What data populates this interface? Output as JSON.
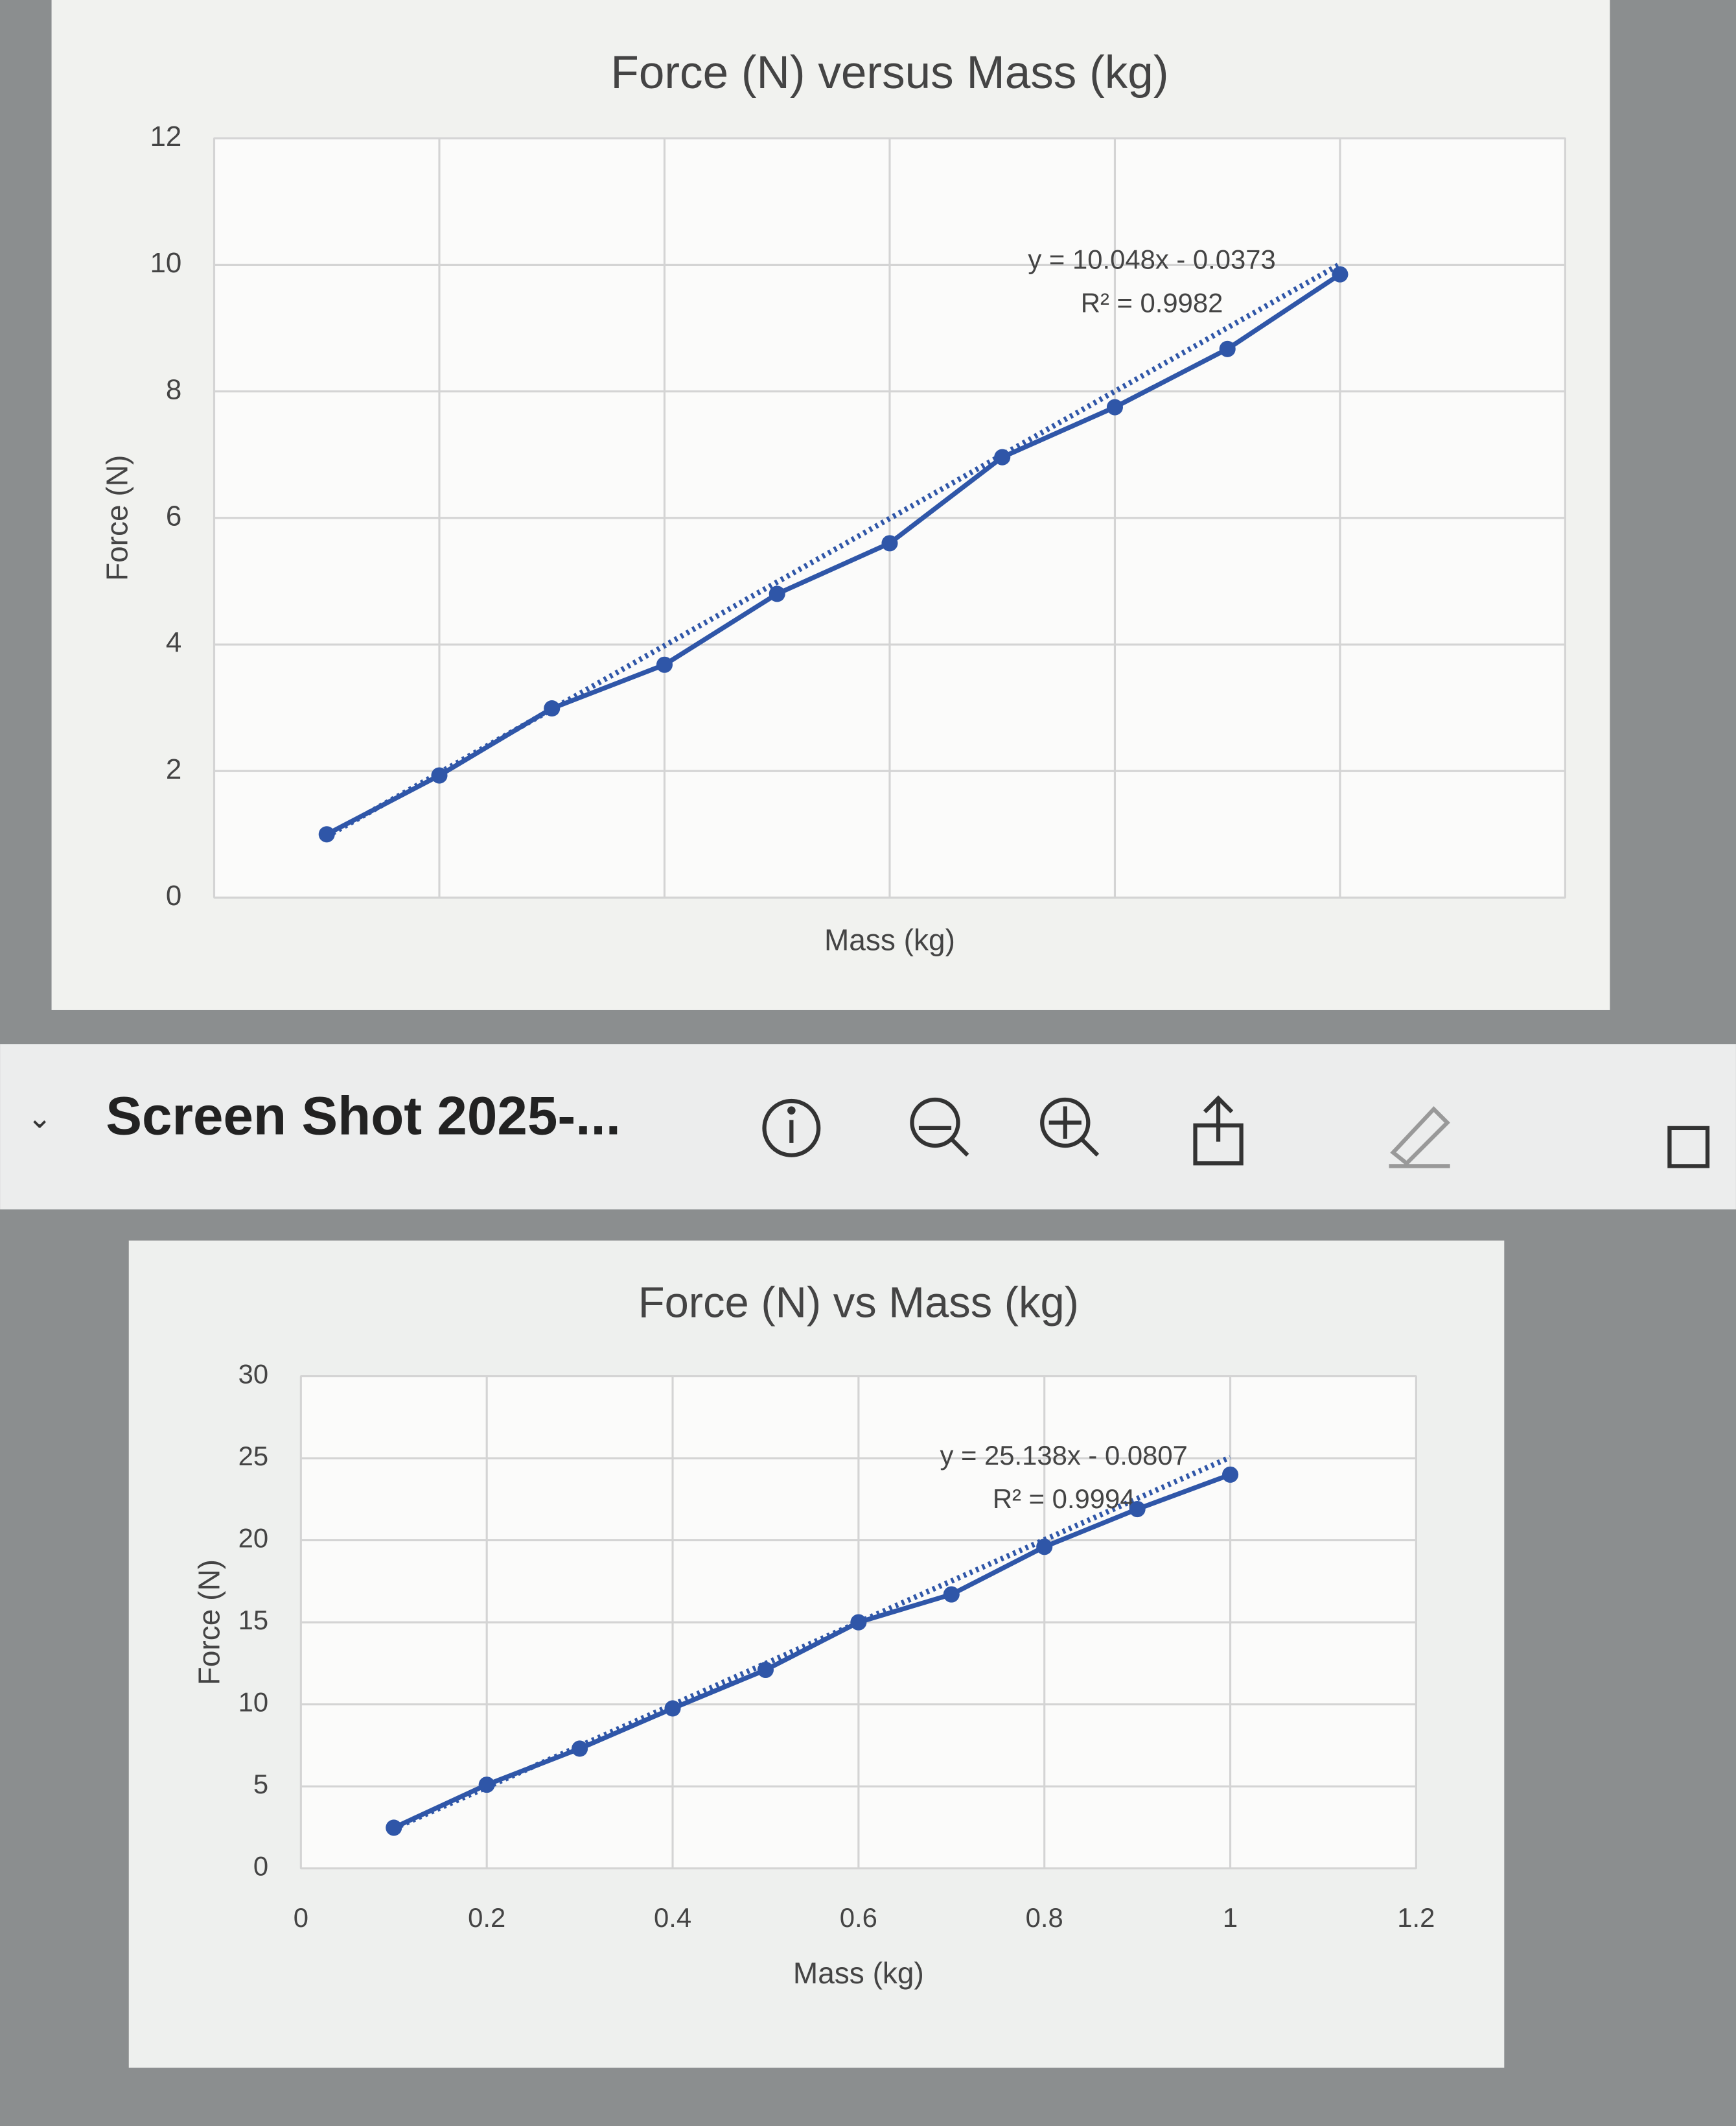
{
  "toolbar": {
    "title": "Screen Shot 2025-..."
  },
  "chart_data": [
    {
      "type": "line",
      "title": "Force (N) versus Mass (kg)",
      "x_label": "Mass (kg)",
      "y_label": "Force (N)",
      "x": [
        0.1,
        0.2,
        0.3,
        0.4,
        0.5,
        0.6,
        0.7,
        0.8,
        0.9,
        1.0
      ],
      "series": [
        {
          "name": "Force (N)",
          "color": "#2f56a8",
          "values": [
            1.0,
            1.93,
            2.99,
            3.68,
            4.8,
            5.6,
            6.96,
            7.75,
            8.67,
            9.85
          ]
        }
      ],
      "xlim": [
        0,
        1.2
      ],
      "xticks": [
        0,
        0.2,
        0.4,
        0.6,
        0.8,
        1,
        1.2
      ],
      "xtick_labels": false,
      "ylim": [
        0,
        12
      ],
      "yticks": [
        0,
        2,
        4,
        6,
        8,
        10,
        12
      ],
      "grid": true,
      "trendline": {
        "slope": 10.048,
        "intercept": -0.0373,
        "equation": "y = 10.048x - 0.0373",
        "r2_label": "R² = 0.9982"
      }
    },
    {
      "type": "line",
      "title": "Force (N) vs Mass (kg)",
      "x_label": "Mass (kg)",
      "y_label": "Force (N)",
      "x": [
        0.1,
        0.2,
        0.3,
        0.4,
        0.5,
        0.6,
        0.7,
        0.8,
        0.9,
        1.0
      ],
      "series": [
        {
          "name": "Force (N)",
          "color": "#2f56a8",
          "values": [
            2.48,
            5.1,
            7.3,
            9.75,
            12.1,
            15.0,
            16.7,
            19.6,
            21.9,
            24.0
          ]
        }
      ],
      "xlim": [
        0,
        1.2
      ],
      "xticks": [
        0,
        0.2,
        0.4,
        0.6,
        0.8,
        1,
        1.2
      ],
      "xtick_labels": true,
      "ylim": [
        0,
        30
      ],
      "yticks": [
        0,
        5,
        10,
        15,
        20,
        25,
        30
      ],
      "grid": true,
      "trendline": {
        "slope": 25.138,
        "intercept": -0.0807,
        "equation": "y = 25.138x - 0.0807",
        "r2_label": "R² = 0.9994"
      }
    }
  ]
}
